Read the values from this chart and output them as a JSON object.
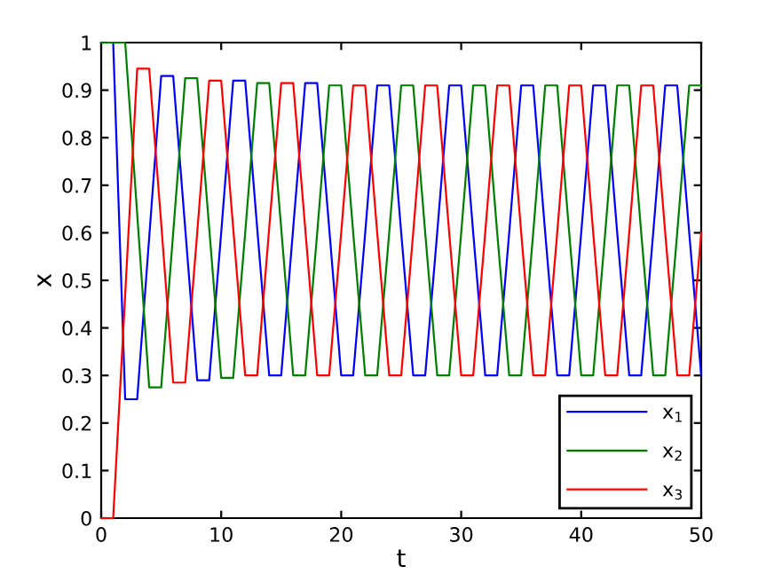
{
  "chart_data": {
    "type": "line",
    "xlabel": "t",
    "ylabel": "x",
    "x": [
      0,
      1,
      2,
      3,
      4,
      5,
      6,
      7,
      8,
      9,
      10,
      11,
      12,
      13,
      14,
      15,
      16,
      17,
      18,
      19,
      20,
      21,
      22,
      23,
      24,
      25,
      26,
      27,
      28,
      29,
      30,
      31,
      32,
      33,
      34,
      35,
      36,
      37,
      38,
      39,
      40,
      41,
      42,
      43,
      44,
      45,
      46,
      47,
      48,
      49,
      50
    ],
    "series": [
      {
        "name": "x$_{1}$",
        "color": "#0000ff",
        "values": [
          1,
          1,
          0.25,
          0.25,
          0.59,
          0.93,
          0.93,
          0.61,
          0.29,
          0.29,
          0.6,
          0.92,
          0.92,
          0.61,
          0.3,
          0.3,
          0.61,
          0.915,
          0.915,
          0.61,
          0.3,
          0.3,
          0.6,
          0.91,
          0.91,
          0.6,
          0.3,
          0.3,
          0.6,
          0.91,
          0.91,
          0.6,
          0.3,
          0.3,
          0.6,
          0.91,
          0.91,
          0.6,
          0.3,
          0.3,
          0.6,
          0.91,
          0.91,
          0.6,
          0.3,
          0.3,
          0.6,
          0.91,
          0.91,
          0.6,
          0.3
        ]
      },
      {
        "name": "x$_{2}$",
        "color": "#008000",
        "values": [
          1,
          1,
          1,
          0.64,
          0.275,
          0.275,
          0.6,
          0.925,
          0.925,
          0.61,
          0.295,
          0.295,
          0.6,
          0.915,
          0.915,
          0.61,
          0.3,
          0.3,
          0.6,
          0.91,
          0.91,
          0.6,
          0.3,
          0.3,
          0.6,
          0.91,
          0.91,
          0.6,
          0.3,
          0.3,
          0.6,
          0.91,
          0.91,
          0.6,
          0.3,
          0.3,
          0.6,
          0.91,
          0.91,
          0.6,
          0.3,
          0.3,
          0.6,
          0.91,
          0.91,
          0.6,
          0.3,
          0.3,
          0.6,
          0.91,
          0.91
        ]
      },
      {
        "name": "x$_{3}$",
        "color": "#ff0000",
        "values": [
          0,
          0,
          0.47,
          0.945,
          0.945,
          0.62,
          0.285,
          0.285,
          0.6,
          0.92,
          0.92,
          0.61,
          0.3,
          0.3,
          0.61,
          0.915,
          0.915,
          0.61,
          0.3,
          0.3,
          0.6,
          0.91,
          0.91,
          0.6,
          0.3,
          0.3,
          0.6,
          0.91,
          0.91,
          0.6,
          0.3,
          0.3,
          0.6,
          0.91,
          0.91,
          0.6,
          0.3,
          0.3,
          0.6,
          0.91,
          0.91,
          0.6,
          0.3,
          0.3,
          0.6,
          0.91,
          0.91,
          0.6,
          0.3,
          0.3,
          0.6
        ]
      }
    ],
    "xlim": [
      0,
      50
    ],
    "ylim": [
      0,
      1
    ],
    "xticks": [
      0,
      10,
      20,
      30,
      40,
      50
    ],
    "yticks": [
      0,
      0.1,
      0.2,
      0.3,
      0.4,
      0.5,
      0.6,
      0.7,
      0.8,
      0.9,
      1
    ],
    "grid": false,
    "legend": "bottom right",
    "marker": "none",
    "line_style": "solid"
  }
}
